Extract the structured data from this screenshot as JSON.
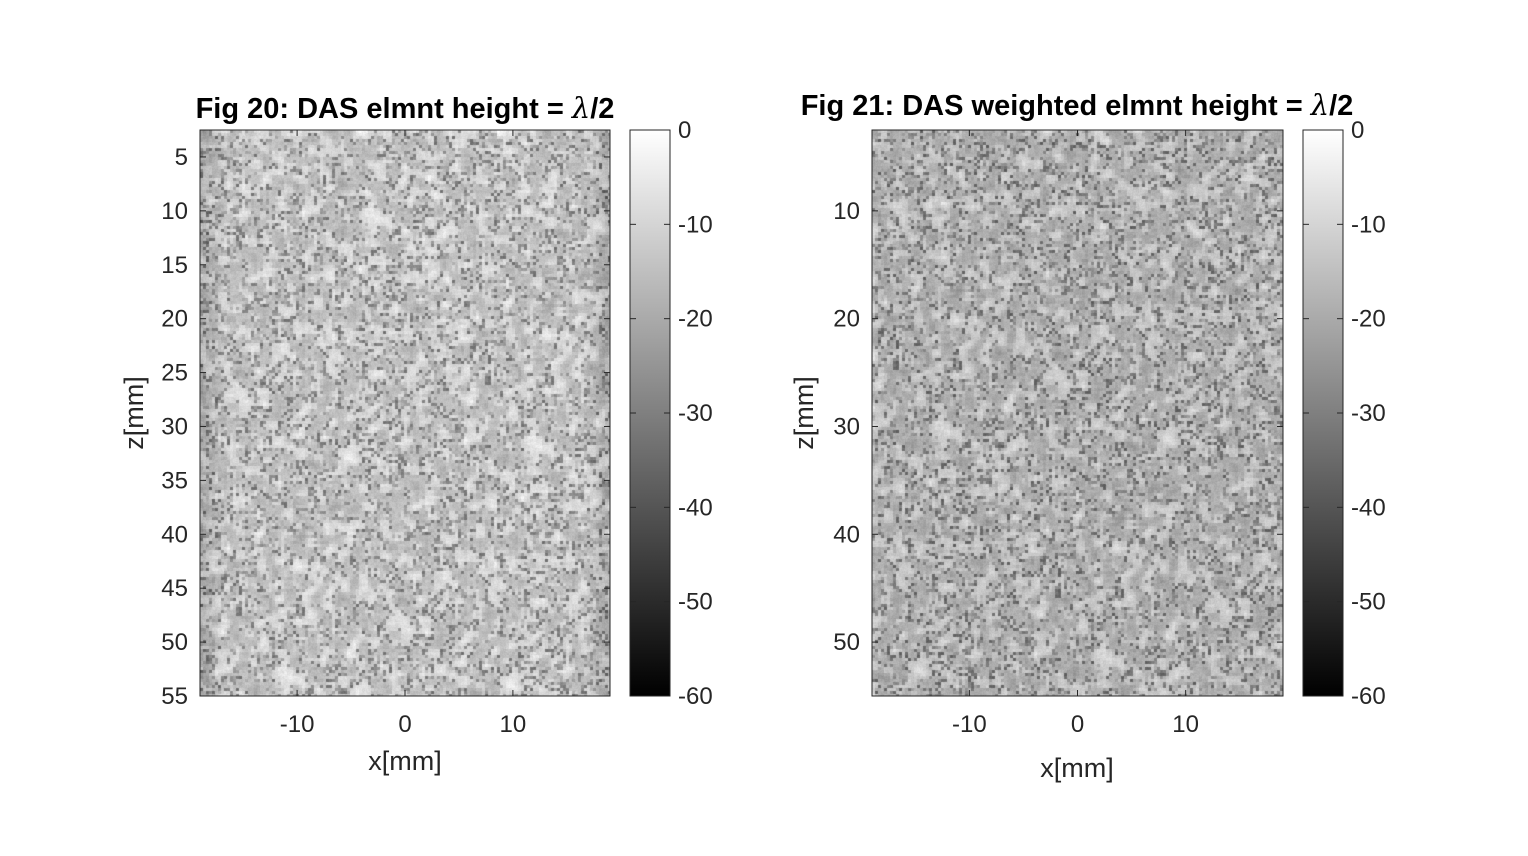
{
  "chart_data": [
    {
      "type": "heatmap",
      "title_prefix": "Fig 20: DAS elmnt height = ",
      "title_symbol": "λ",
      "title_suffix": "/2",
      "xlabel": "x[mm]",
      "ylabel": "z[mm]",
      "xlim": [
        -19,
        19
      ],
      "ylim": [
        2.5,
        55
      ],
      "y_reversed": true,
      "xticks": [
        -10,
        0,
        10
      ],
      "yticks": [
        5,
        10,
        15,
        20,
        25,
        30,
        35,
        40,
        45,
        50,
        55
      ],
      "colorbar": {
        "label": "",
        "clim": [
          -60,
          0
        ],
        "ticks": [
          0,
          -10,
          -20,
          -30,
          -40,
          -50,
          -60
        ],
        "colormap": "gray"
      },
      "data_description_values": {
        "speckle_mean_db": -12,
        "edge_darkening": true
      }
    },
    {
      "type": "heatmap",
      "title_prefix": "Fig 21: DAS weighted elmnt height = ",
      "title_symbol": "λ",
      "title_suffix": "/2",
      "xlabel": "x[mm]",
      "ylabel": "z[mm]",
      "xlim": [
        -19,
        19
      ],
      "ylim": [
        2.5,
        55
      ],
      "y_reversed": true,
      "xticks": [
        -10,
        0,
        10
      ],
      "yticks": [
        10,
        20,
        30,
        40,
        50
      ],
      "colorbar": {
        "label": "",
        "clim": [
          -60,
          0
        ],
        "ticks": [
          0,
          -10,
          -20,
          -30,
          -40,
          -50,
          -60
        ],
        "colormap": "gray"
      },
      "data_description_values": {
        "speckle_mean_db": -16,
        "edge_darkening": false
      }
    }
  ],
  "colors": {
    "background": "#ffffff",
    "axis": "#262626",
    "title": "#000000"
  }
}
